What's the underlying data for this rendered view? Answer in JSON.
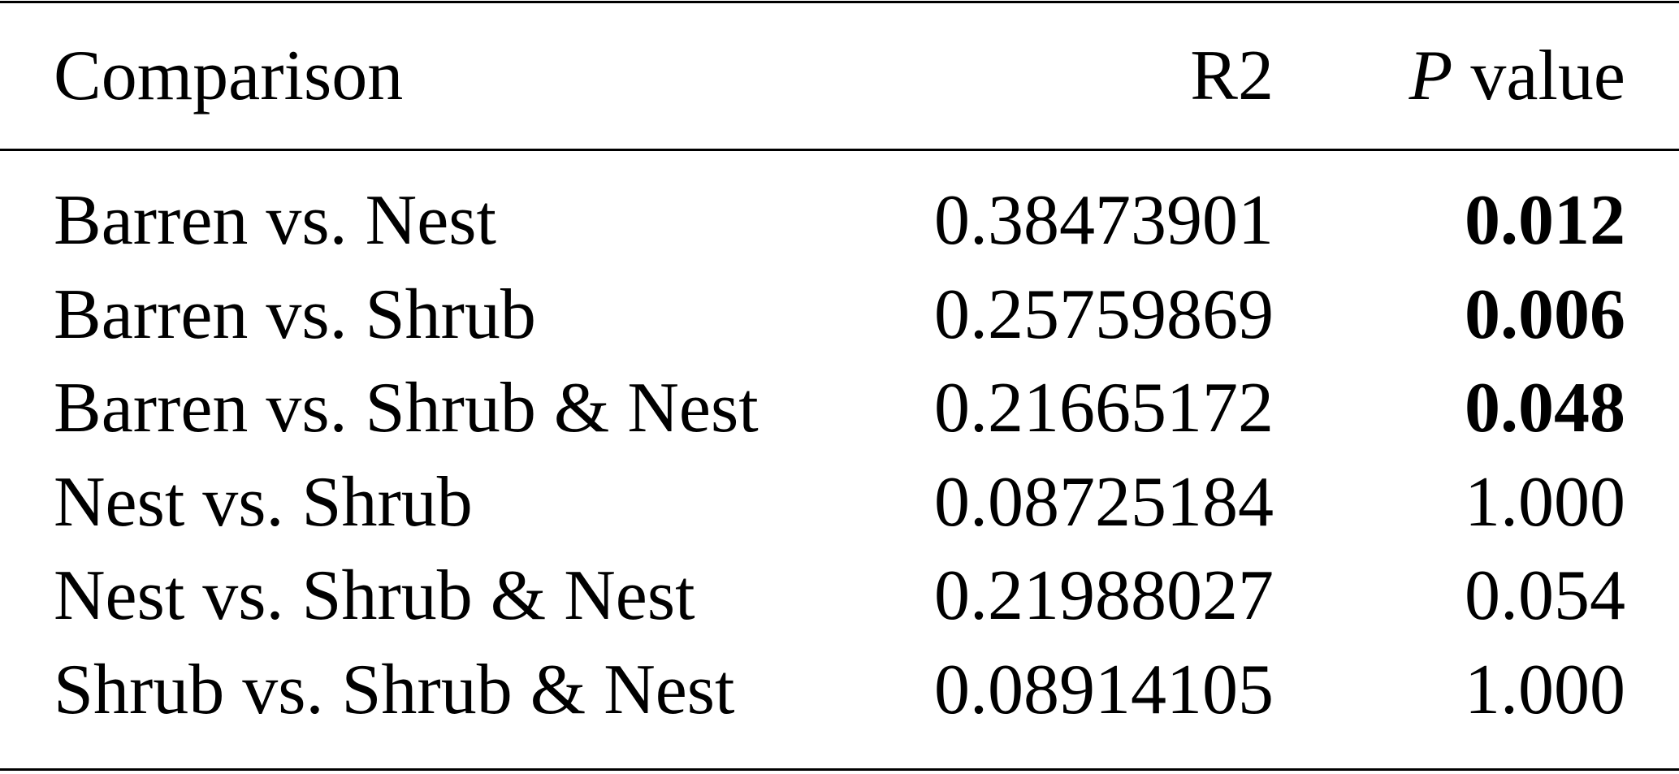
{
  "table": {
    "headers": {
      "comparison": "Comparison",
      "r2": "R2",
      "p_italic": "P",
      "p_rest": " value"
    },
    "rows": [
      {
        "comparison": "Barren vs. Nest",
        "r2": "0.38473901",
        "p": "0.012",
        "bold": true
      },
      {
        "comparison": "Barren vs. Shrub",
        "r2": "0.25759869",
        "p": "0.006",
        "bold": true
      },
      {
        "comparison": "Barren vs. Shrub & Nest",
        "r2": "0.21665172",
        "p": "0.048",
        "bold": true
      },
      {
        "comparison": "Nest vs. Shrub",
        "r2": "0.08725184",
        "p": "1.000",
        "bold": false
      },
      {
        "comparison": "Nest vs. Shrub & Nest",
        "r2": "0.21988027",
        "p": "0.054",
        "bold": false
      },
      {
        "comparison": "Shrub vs. Shrub & Nest",
        "r2": "0.08914105",
        "p": "1.000",
        "bold": false
      }
    ]
  }
}
